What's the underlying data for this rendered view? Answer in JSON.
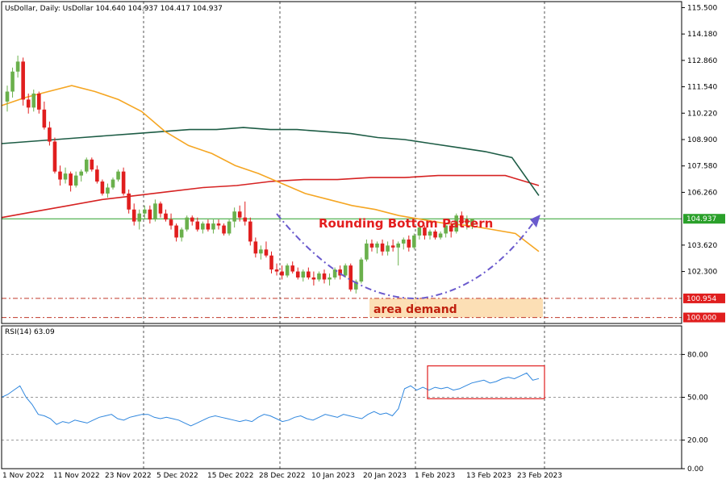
{
  "chart_data": [
    {
      "type": "candlestick",
      "header": "UsDollar, Daily:  UsDollar  104.640 104.937 104.417 104.937",
      "price_ticks": [
        "115.500",
        "114.180",
        "112.860",
        "111.540",
        "110.220",
        "108.900",
        "107.580",
        "106.260",
        "104.937",
        "103.620",
        "102.300",
        "100.954",
        "100.000"
      ],
      "date_labels": [
        "1 Nov 2022",
        "11 Nov 2022",
        "23 Nov 2022",
        "5 Dec 2022",
        "15 Dec 2022",
        "28 Dec 2022",
        "10 Jan 2023",
        "20 Jan 2023",
        "1 Feb 2023",
        "13 Feb 2023",
        "23 Feb 2023"
      ],
      "ylim": [
        99.7,
        115.8
      ],
      "levels": {
        "current": 104.937,
        "demand_top": 100.954,
        "demand_bottom": 100.0
      },
      "candles": [
        [
          110.8,
          111.6,
          110.3,
          111.3
        ],
        [
          111.3,
          112.5,
          111.0,
          112.3
        ],
        [
          112.3,
          113.1,
          112.0,
          112.8
        ],
        [
          112.8,
          113.0,
          110.6,
          110.9
        ],
        [
          110.9,
          111.2,
          110.2,
          110.5
        ],
        [
          110.5,
          111.4,
          110.3,
          111.2
        ],
        [
          111.2,
          111.3,
          110.2,
          110.4
        ],
        [
          110.4,
          110.8,
          109.4,
          109.5
        ],
        [
          109.5,
          109.8,
          108.6,
          108.8
        ],
        [
          108.8,
          109.0,
          107.2,
          107.3
        ],
        [
          107.3,
          107.6,
          106.6,
          106.9
        ],
        [
          106.9,
          107.5,
          106.7,
          107.2
        ],
        [
          107.2,
          107.3,
          106.3,
          106.6
        ],
        [
          106.6,
          107.3,
          106.5,
          107.1
        ],
        [
          107.1,
          107.4,
          106.8,
          107.3
        ],
        [
          107.3,
          108.0,
          107.2,
          107.9
        ],
        [
          107.9,
          108.0,
          107.3,
          107.4
        ],
        [
          107.4,
          107.6,
          106.7,
          106.8
        ],
        [
          106.8,
          106.9,
          106.1,
          106.2
        ],
        [
          106.2,
          106.7,
          106.0,
          106.5
        ],
        [
          106.5,
          107.0,
          106.4,
          106.9
        ],
        [
          106.9,
          107.4,
          106.8,
          107.3
        ],
        [
          107.3,
          107.5,
          106.1,
          106.2
        ],
        [
          106.2,
          106.4,
          105.2,
          105.4
        ],
        [
          105.4,
          105.7,
          104.6,
          104.8
        ],
        [
          104.8,
          105.4,
          104.4,
          105.2
        ],
        [
          105.2,
          105.6,
          104.9,
          105.4
        ],
        [
          105.4,
          105.6,
          104.7,
          104.9
        ],
        [
          104.9,
          105.9,
          104.8,
          105.7
        ],
        [
          105.7,
          105.8,
          105.0,
          105.2
        ],
        [
          105.2,
          105.4,
          104.8,
          104.9
        ],
        [
          104.9,
          105.2,
          104.4,
          104.6
        ],
        [
          104.6,
          104.7,
          103.8,
          104.0
        ],
        [
          104.0,
          104.5,
          103.8,
          104.4
        ],
        [
          104.4,
          105.1,
          104.3,
          105.0
        ],
        [
          105.0,
          105.1,
          104.6,
          104.8
        ],
        [
          104.8,
          105.0,
          104.3,
          104.4
        ],
        [
          104.4,
          104.8,
          104.2,
          104.7
        ],
        [
          104.7,
          104.9,
          104.3,
          104.4
        ],
        [
          104.4,
          104.9,
          104.2,
          104.7
        ],
        [
          104.7,
          104.9,
          104.4,
          104.6
        ],
        [
          104.6,
          104.7,
          104.1,
          104.2
        ],
        [
          104.2,
          104.9,
          104.1,
          104.8
        ],
        [
          104.8,
          105.5,
          104.5,
          105.3
        ],
        [
          105.3,
          105.6,
          104.8,
          105.0
        ],
        [
          105.0,
          105.8,
          104.6,
          104.8
        ],
        [
          104.8,
          105.0,
          103.6,
          103.8
        ],
        [
          103.8,
          104.0,
          103.0,
          103.2
        ],
        [
          103.2,
          103.6,
          102.9,
          103.4
        ],
        [
          103.4,
          103.8,
          103.0,
          103.1
        ],
        [
          103.1,
          103.3,
          102.2,
          102.4
        ],
        [
          102.4,
          102.7,
          102.1,
          102.3
        ],
        [
          102.3,
          102.6,
          101.9,
          102.1
        ],
        [
          102.1,
          102.7,
          102.0,
          102.6
        ],
        [
          102.6,
          102.8,
          102.2,
          102.3
        ],
        [
          102.3,
          102.5,
          101.9,
          102.0
        ],
        [
          102.0,
          102.4,
          101.8,
          102.3
        ],
        [
          102.3,
          102.5,
          101.9,
          102.0
        ],
        [
          102.0,
          102.3,
          101.6,
          101.9
        ],
        [
          101.9,
          102.3,
          101.8,
          102.2
        ],
        [
          102.2,
          102.4,
          101.7,
          101.9
        ],
        [
          101.9,
          102.2,
          101.6,
          102.0
        ],
        [
          102.0,
          102.5,
          101.9,
          102.4
        ],
        [
          102.4,
          102.6,
          101.9,
          102.1
        ],
        [
          102.1,
          102.7,
          102.0,
          102.6
        ],
        [
          102.6,
          102.7,
          101.3,
          101.4
        ],
        [
          101.4,
          101.9,
          101.2,
          101.8
        ],
        [
          101.8,
          103.0,
          101.7,
          102.9
        ],
        [
          102.9,
          103.9,
          102.8,
          103.7
        ],
        [
          103.7,
          103.9,
          103.3,
          103.5
        ],
        [
          103.5,
          103.8,
          103.2,
          103.7
        ],
        [
          103.7,
          103.9,
          103.1,
          103.3
        ],
        [
          103.3,
          103.8,
          103.1,
          103.6
        ],
        [
          103.6,
          103.9,
          103.3,
          103.5
        ],
        [
          103.5,
          103.8,
          102.6,
          103.7
        ],
        [
          103.7,
          104.0,
          103.4,
          103.9
        ],
        [
          103.9,
          104.1,
          103.3,
          103.5
        ],
        [
          103.5,
          104.2,
          103.4,
          104.1
        ],
        [
          104.1,
          104.7,
          103.9,
          104.5
        ],
        [
          104.5,
          104.6,
          103.9,
          104.1
        ],
        [
          104.1,
          104.4,
          103.9,
          104.3
        ],
        [
          104.3,
          104.4,
          103.9,
          104.0
        ],
        [
          104.0,
          104.3,
          103.9,
          104.2
        ],
        [
          104.2,
          104.7,
          104.0,
          104.6
        ],
        [
          104.6,
          104.8,
          104.0,
          104.3
        ],
        [
          104.3,
          105.2,
          104.2,
          105.1
        ],
        [
          105.1,
          105.3,
          104.6,
          104.7
        ],
        [
          104.7,
          105.1,
          104.4,
          104.9
        ],
        [
          104.6,
          104.94,
          104.42,
          104.94
        ]
      ],
      "ma50": [
        [
          110.6,
          111.1
        ],
        [
          111.0,
          111.0
        ],
        [
          111.3,
          110.3
        ],
        [
          111.6,
          109.7
        ],
        [
          111.3,
          109.0
        ],
        [
          110.9,
          108.2
        ],
        [
          110.3,
          107.2
        ],
        [
          109.3,
          106.5
        ],
        [
          108.6,
          105.9
        ],
        [
          108.2,
          105.5
        ],
        [
          107.6,
          105.2
        ],
        [
          107.2,
          104.9
        ],
        [
          106.7,
          104.6
        ],
        [
          106.2,
          104.3
        ],
        [
          105.9,
          104.0
        ],
        [
          105.6,
          103.8
        ],
        [
          105.4,
          103.6
        ],
        [
          105.1,
          103.6
        ],
        [
          104.9,
          103.5
        ],
        [
          104.7,
          103.5
        ],
        [
          104.6,
          103.4
        ],
        [
          104.4,
          103.35
        ],
        [
          104.2,
          103.3
        ]
      ],
      "ma100": [
        [
          108.7,
          108.7
        ],
        [
          108.8,
          108.9
        ],
        [
          108.9,
          109.1
        ],
        [
          109.0,
          109.2
        ],
        [
          109.1,
          109.2
        ],
        [
          109.2,
          109.1
        ],
        [
          109.3,
          109.0
        ],
        [
          109.4,
          108.8
        ],
        [
          109.4,
          108.7
        ],
        [
          109.5,
          108.6
        ],
        [
          109.4,
          108.4
        ],
        [
          109.4,
          108.2
        ],
        [
          109.3,
          107.9
        ],
        [
          109.2,
          107.7
        ],
        [
          109.0,
          107.5
        ],
        [
          108.9,
          107.2
        ],
        [
          108.7,
          106.9
        ],
        [
          108.5,
          106.6
        ],
        [
          108.3,
          106.3
        ],
        [
          108.0,
          106.1
        ]
      ],
      "ma200": [
        [
          105.0,
          104.5
        ],
        [
          105.3,
          104.8
        ],
        [
          105.6,
          105.1
        ],
        [
          105.9,
          105.4
        ],
        [
          106.1,
          105.7
        ],
        [
          106.3,
          105.9
        ],
        [
          106.5,
          106.1
        ],
        [
          106.6,
          106.3
        ],
        [
          106.8,
          106.4
        ],
        [
          106.9,
          106.5
        ],
        [
          106.9,
          106.6
        ],
        [
          107.0,
          106.6
        ],
        [
          107.0,
          106.6
        ],
        [
          107.1,
          106.6
        ],
        [
          107.1,
          106.6
        ],
        [
          107.1,
          106.6
        ]
      ],
      "annotations": [
        "Rounding Bottom Pattern",
        "area demand"
      ],
      "colors": {
        "bull": "#6ab04c",
        "bear": "#e01e1e",
        "ma50": "#f5a623",
        "ma100": "#1d5c45",
        "ma200": "#d62222",
        "tag": "#e01e1e",
        "price_line": "#2aa02a",
        "curve": "#6a5acd"
      }
    },
    {
      "type": "line",
      "title": "RSI(14) 63.09",
      "ticks": [
        "80.00",
        "50.00",
        "20.00",
        "0.00"
      ],
      "ylim": [
        0,
        100
      ],
      "values": [
        50,
        52,
        55,
        58,
        50,
        45,
        38,
        37,
        35,
        31,
        33,
        32,
        34,
        33,
        32,
        34,
        36,
        37,
        38,
        35,
        34,
        36,
        37,
        38,
        38,
        36,
        35,
        36,
        35,
        34,
        32,
        30,
        32,
        34,
        36,
        37,
        36,
        35,
        34,
        33,
        34,
        33,
        36,
        38,
        37,
        35,
        33,
        34,
        36,
        37,
        35,
        34,
        36,
        38,
        37,
        36,
        38,
        37,
        36,
        35,
        38,
        40,
        38,
        39,
        37,
        42,
        56,
        58,
        55,
        57,
        55,
        57,
        56,
        57,
        55,
        56,
        58,
        60,
        61,
        62,
        60,
        61,
        63,
        64,
        63,
        65,
        67,
        62,
        63.09
      ]
    }
  ]
}
